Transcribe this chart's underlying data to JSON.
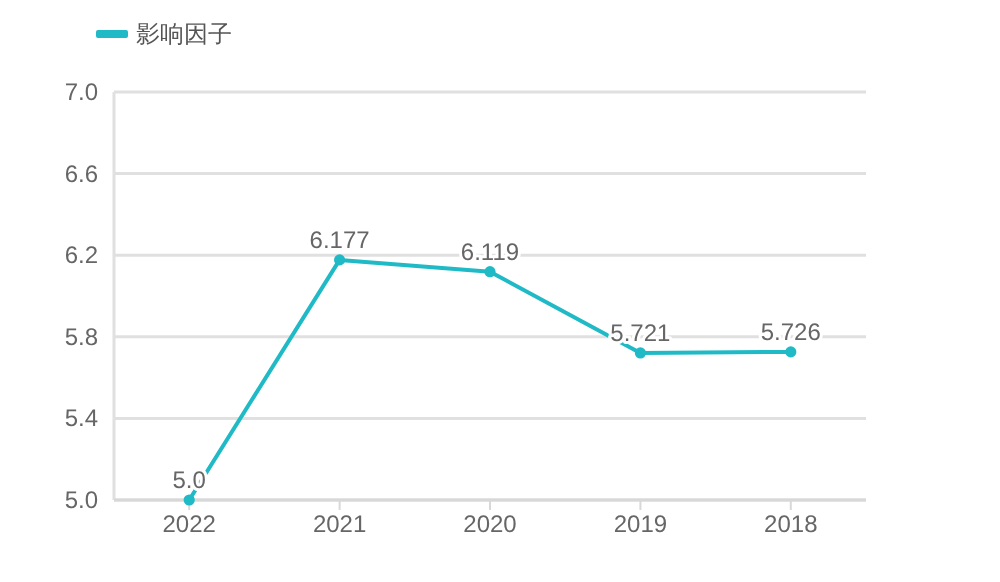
{
  "chart_data": {
    "type": "line",
    "categories": [
      "2022",
      "2021",
      "2020",
      "2019",
      "2018"
    ],
    "series": [
      {
        "name": "影响因子",
        "color": "#1fbac6",
        "values": [
          5.0,
          6.177,
          6.119,
          5.721,
          5.726
        ]
      }
    ],
    "value_labels": [
      "5.0",
      "6.177",
      "6.119",
      "5.721",
      "5.726"
    ],
    "ylim": [
      5.0,
      7.0
    ],
    "yticks": [
      {
        "value": 5.0,
        "label": "5.0"
      },
      {
        "value": 5.4,
        "label": "5.4"
      },
      {
        "value": 5.8,
        "label": "5.8"
      },
      {
        "value": 6.2,
        "label": "6.2"
      },
      {
        "value": 6.6,
        "label": "6.6"
      },
      {
        "value": 7.0,
        "label": "7.0"
      }
    ],
    "grid": "y",
    "legend": "top left",
    "marker": "circle"
  }
}
